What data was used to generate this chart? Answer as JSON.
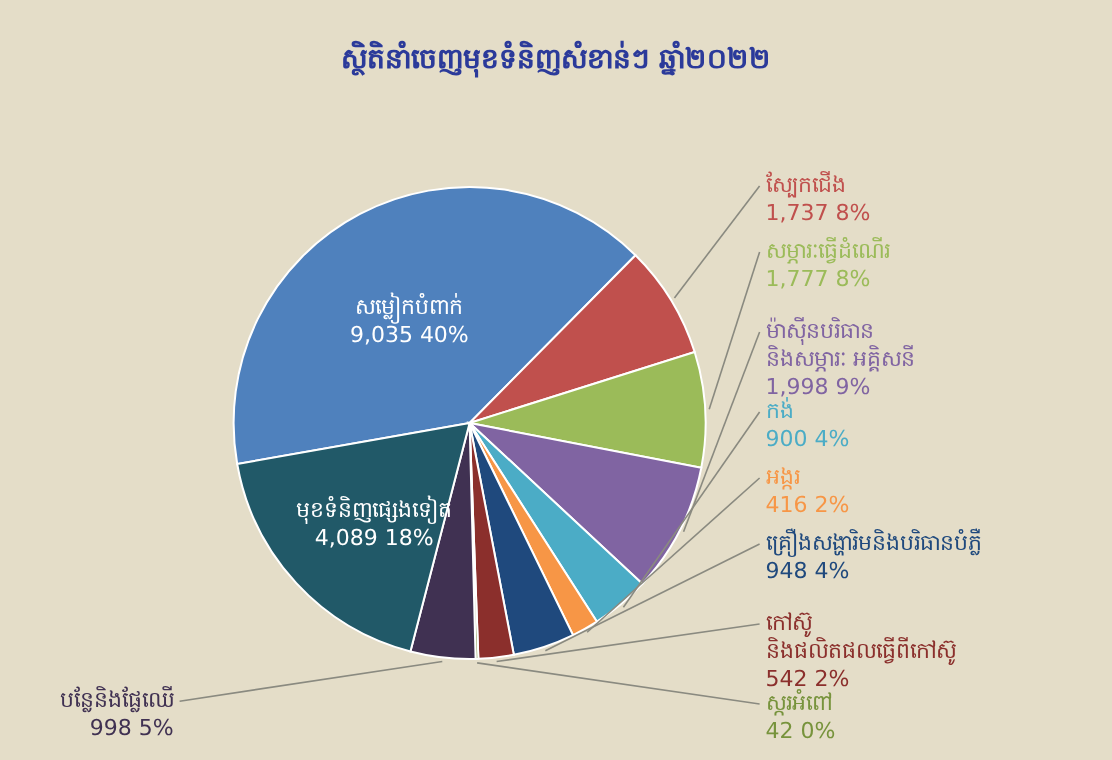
{
  "chart_data": {
    "type": "pie",
    "title": "ស្ថិតិនាំចេញមុខទំនិញសំខាន់ៗ ឆ្នាំ២០២២",
    "categories": [
      "សម្លៀកបំពាក់",
      "ស្បែកជើង",
      "សម្ភារៈធ្វើដំណើរ",
      "ម៉ាស៊ីនបរិធាន និងសម្ភារៈ អគ្គិសនី",
      "កង់",
      "អង្ករ",
      "គ្រឿងសង្ហារិមនិងបរិធានបំភ្លឺ",
      "កៅស៊ូ និងផលិតផលធ្វើពីកៅស៊ូ",
      "ស្ករអំពៅ",
      "បន្លែនិងផ្លែឈើ",
      "មុខទំនិញផ្សេងទៀត"
    ],
    "values": [
      9035,
      1737,
      1777,
      1998,
      900,
      416,
      948,
      542,
      42,
      998,
      4089
    ],
    "value_labels": [
      "9,035 40%",
      "1,737 8%",
      "1,777 8%",
      "1,998 9%",
      "900 4%",
      "416 2%",
      "948 4%",
      "542 2%",
      "42 0%",
      "998 5%",
      "4,089 18%"
    ],
    "colors": [
      "#4f81bd",
      "#c0504d",
      "#9bbb59",
      "#8064a2",
      "#4bacc6",
      "#f79646",
      "#1f497d",
      "#8b2f2c",
      "#77933c",
      "#403152",
      "#215968"
    ]
  }
}
